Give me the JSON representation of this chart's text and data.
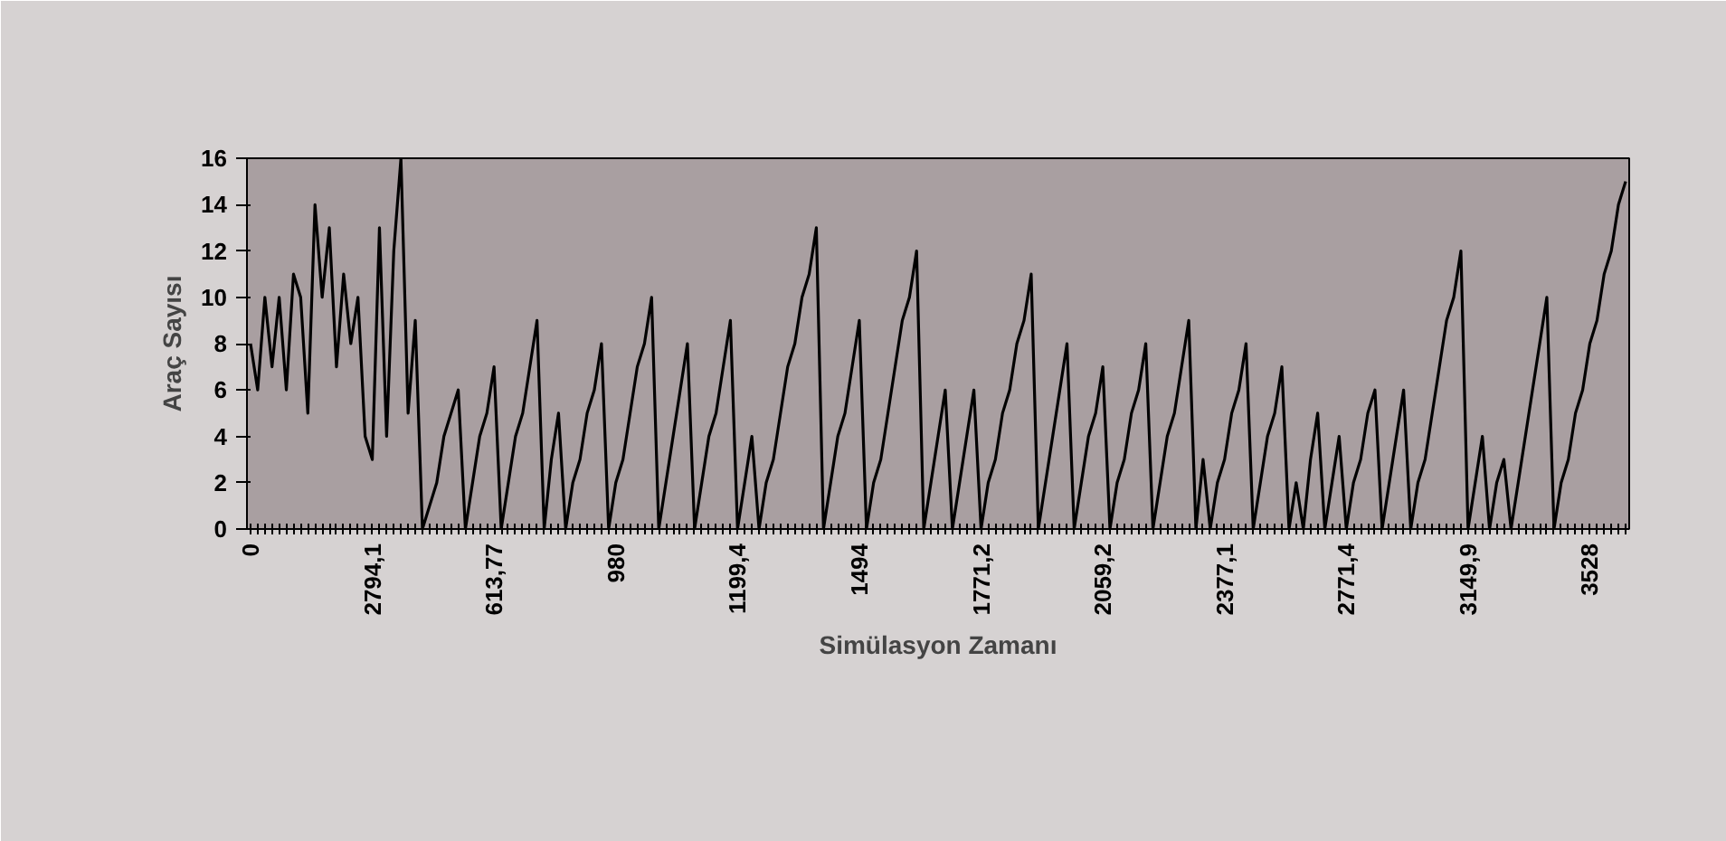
{
  "chart_data": {
    "type": "line",
    "xlabel": "Simülasyon Zamanı",
    "ylabel": "Araç Sayısı",
    "categories": [
      "0",
      null,
      null,
      null,
      null,
      null,
      null,
      null,
      null,
      null,
      null,
      null,
      null,
      null,
      null,
      null,
      null,
      "2794,1",
      null,
      null,
      null,
      null,
      null,
      null,
      null,
      null,
      null,
      null,
      null,
      null,
      null,
      null,
      null,
      null,
      "613,77",
      null,
      null,
      null,
      null,
      null,
      null,
      null,
      null,
      null,
      null,
      null,
      null,
      null,
      null,
      null,
      null,
      "980",
      null,
      null,
      null,
      null,
      null,
      null,
      null,
      null,
      null,
      null,
      null,
      null,
      null,
      null,
      null,
      null,
      "1199,4",
      null,
      null,
      null,
      null,
      null,
      null,
      null,
      null,
      null,
      null,
      null,
      null,
      null,
      null,
      null,
      null,
      "1494",
      null,
      null,
      null,
      null,
      null,
      null,
      null,
      null,
      null,
      null,
      null,
      null,
      null,
      null,
      null,
      null,
      "1771,2",
      null,
      null,
      null,
      null,
      null,
      null,
      null,
      null,
      null,
      null,
      null,
      null,
      null,
      null,
      null,
      null,
      "2059,2",
      null,
      null,
      null,
      null,
      null,
      null,
      null,
      null,
      null,
      null,
      null,
      null,
      null,
      null,
      null,
      null,
      "2377,1",
      null,
      null,
      null,
      null,
      null,
      null,
      null,
      null,
      null,
      null,
      null,
      null,
      null,
      null,
      null,
      null,
      "2771,4",
      null,
      null,
      null,
      null,
      null,
      null,
      null,
      null,
      null,
      null,
      null,
      null,
      null,
      null,
      null,
      null,
      "3149,9",
      null,
      null,
      null,
      null,
      null,
      null,
      null,
      null,
      null,
      null,
      null,
      null,
      null,
      null,
      null,
      null,
      "3528",
      null,
      null,
      null,
      null,
      null
    ],
    "series": [
      {
        "color": "#000000",
        "values": [
          8,
          6,
          10,
          7,
          10,
          6,
          11,
          10,
          5,
          14,
          10,
          13,
          7,
          11,
          8,
          10,
          4,
          3,
          13,
          4,
          12,
          16,
          5,
          9,
          0,
          1,
          2,
          4,
          5,
          6,
          0,
          2,
          4,
          5,
          7,
          0,
          2,
          4,
          5,
          7,
          9,
          0,
          3,
          5,
          0,
          2,
          3,
          5,
          6,
          8,
          0,
          2,
          3,
          5,
          7,
          8,
          10,
          0,
          2,
          4,
          6,
          8,
          0,
          2,
          4,
          5,
          7,
          9,
          0,
          2,
          4,
          0,
          2,
          3,
          5,
          7,
          8,
          10,
          11,
          13,
          0,
          2,
          4,
          5,
          7,
          9,
          0,
          2,
          3,
          5,
          7,
          9,
          10,
          12,
          0,
          2,
          4,
          6,
          0,
          2,
          4,
          6,
          0,
          2,
          3,
          5,
          6,
          8,
          9,
          11,
          0,
          2,
          4,
          6,
          8,
          0,
          2,
          4,
          5,
          7,
          0,
          2,
          3,
          5,
          6,
          8,
          0,
          2,
          4,
          5,
          7,
          9,
          0,
          3,
          0,
          2,
          3,
          5,
          6,
          8,
          0,
          2,
          4,
          5,
          7,
          0,
          2,
          0,
          3,
          5,
          0,
          2,
          4,
          0,
          2,
          3,
          5,
          6,
          0,
          2,
          4,
          6,
          0,
          2,
          3,
          5,
          7,
          9,
          10,
          12,
          0,
          2,
          4,
          0,
          2,
          3,
          0,
          2,
          4,
          6,
          8,
          10,
          0,
          2,
          3,
          5,
          6,
          8,
          9,
          11,
          12,
          14,
          15
        ]
      }
    ],
    "ylim": [
      0,
      16
    ],
    "yticks": [
      0,
      2,
      4,
      6,
      8,
      10,
      12,
      14,
      16
    ],
    "line_style": "solid"
  }
}
